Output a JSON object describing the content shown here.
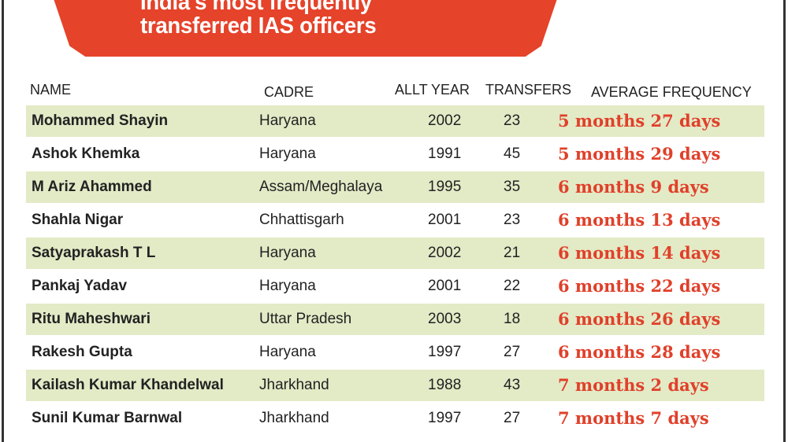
{
  "title_lines": [
    "India's most frequently",
    "transferred IAS officers"
  ],
  "colors": {
    "banner": "#e5432a",
    "highlight_row": "#e3eac6",
    "frequency_text": "#e0402a"
  },
  "columns": [
    "NAME",
    "CADRE",
    "ALLT YEAR",
    "TRANSFERS",
    "AVERAGE FREQUENCY"
  ],
  "rows": [
    {
      "name": "Mohammed Shayin",
      "cadre": "Haryana",
      "year": "2002",
      "transfers": "23",
      "frequency": "5 months 27 days"
    },
    {
      "name": "Ashok Khemka",
      "cadre": "Haryana",
      "year": "1991",
      "transfers": "45",
      "frequency": "5 months 29 days"
    },
    {
      "name": "M Ariz Ahammed",
      "cadre": "Assam/Meghalaya",
      "year": "1995",
      "transfers": "35",
      "frequency": "6 months 9 days"
    },
    {
      "name": "Shahla Nigar",
      "cadre": "Chhattisgarh",
      "year": "2001",
      "transfers": "23",
      "frequency": "6 months 13 days"
    },
    {
      "name": "Satyaprakash T L",
      "cadre": "Haryana",
      "year": "2002",
      "transfers": "21",
      "frequency": "6 months 14 days"
    },
    {
      "name": "Pankaj Yadav",
      "cadre": "Haryana",
      "year": "2001",
      "transfers": "22",
      "frequency": "6 months 22 days"
    },
    {
      "name": "Ritu Maheshwari",
      "cadre": "Uttar Pradesh",
      "year": "2003",
      "transfers": "18",
      "frequency": "6 months 26 days"
    },
    {
      "name": "Rakesh Gupta",
      "cadre": "Haryana",
      "year": "1997",
      "transfers": "27",
      "frequency": "6 months 28 days"
    },
    {
      "name": "Kailash Kumar Khandelwal",
      "cadre": "Jharkhand",
      "year": "1988",
      "transfers": "43",
      "frequency": "7 months 2 days"
    },
    {
      "name": "Sunil Kumar Barnwal",
      "cadre": "Jharkhand",
      "year": "1997",
      "transfers": "27",
      "frequency": "7 months 7 days"
    }
  ]
}
